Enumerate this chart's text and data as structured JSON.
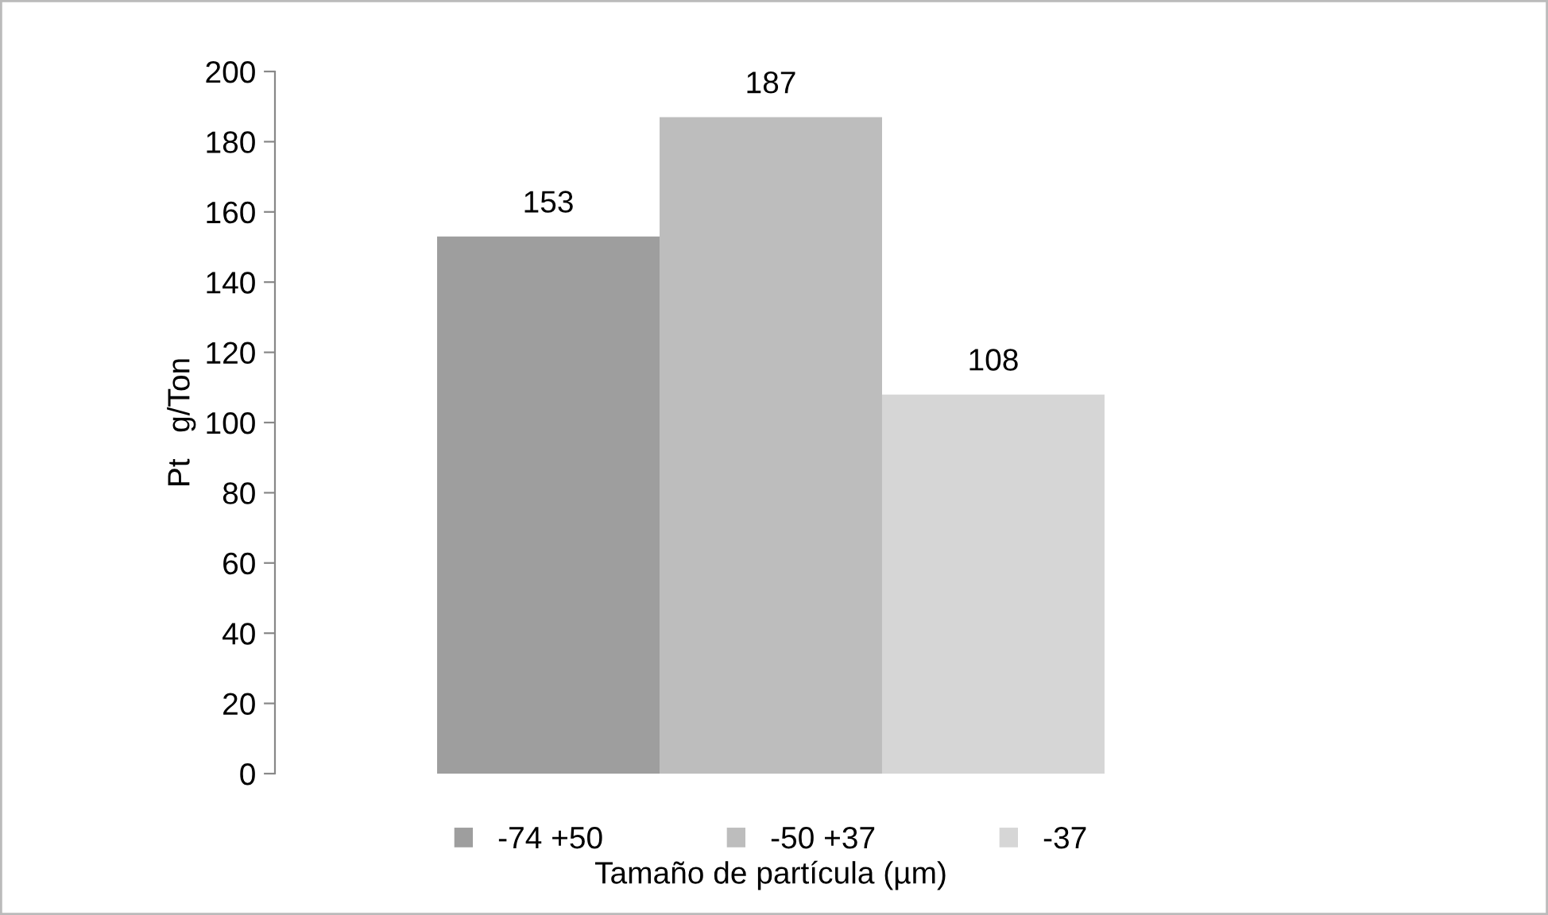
{
  "chart_data": {
    "type": "bar",
    "xlabel": "Tamaño de partícula (µm)",
    "ylabel": "Pt   g/Ton",
    "categories": [
      null
    ],
    "series": [
      {
        "name": "-74 +50",
        "color": "#9e9e9e",
        "values": [
          153
        ]
      },
      {
        "name": "-50 +37",
        "color": "#bdbdbd",
        "values": [
          187
        ]
      },
      {
        "name": "-37",
        "color": "#d6d6d6",
        "values": [
          108
        ]
      }
    ],
    "ylim": [
      0,
      200
    ],
    "yticks": [
      0,
      20,
      40,
      60,
      80,
      100,
      120,
      140,
      160,
      180,
      200
    ],
    "grid": false,
    "legend": "bottom",
    "data_labels": true
  }
}
